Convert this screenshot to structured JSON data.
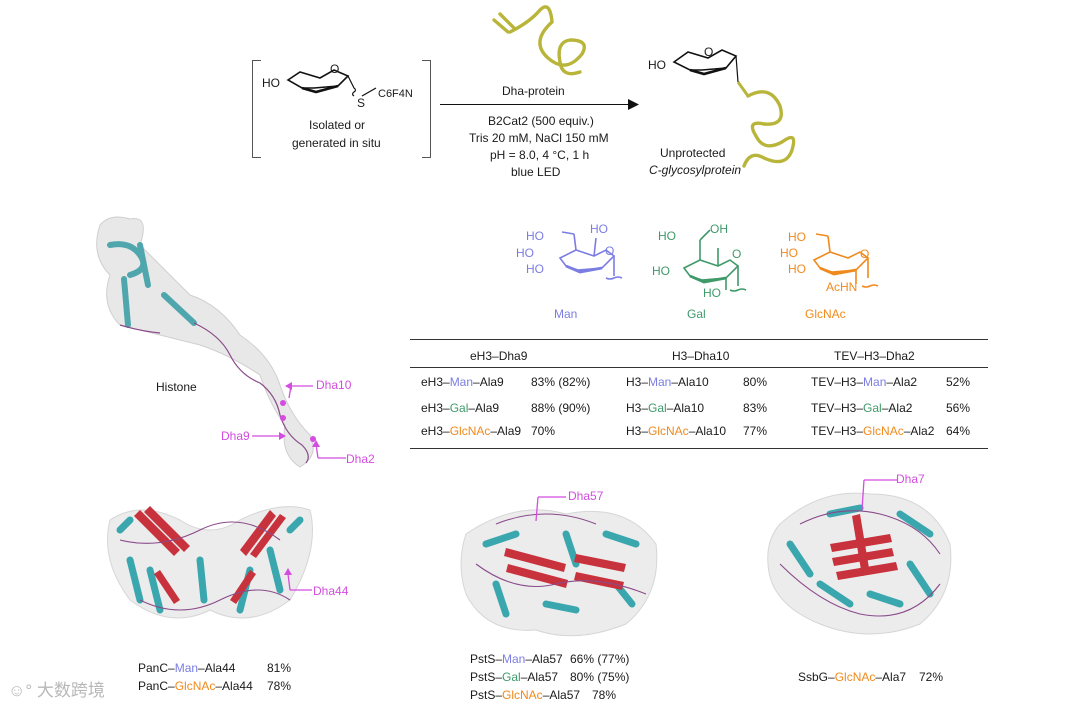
{
  "scheme": {
    "reactant_label_1": "Isolated or",
    "reactant_label_2": "generated in situ",
    "reactant_ho": "HO",
    "reactant_s": "S",
    "reactant_group": "C6F4N",
    "reagent_protein": "Dha-protein",
    "cond_1": "B2Cat2 (500 equiv.)",
    "cond_2": "Tris 20 mM, NaCl 150 mM",
    "cond_3": "pH = 8.0, 4 °C, 1 h",
    "cond_4": "blue LED",
    "product_ho": "HO",
    "product_label_1": "Unprotected",
    "product_label_2": "C-glycosylprotein"
  },
  "sugars": {
    "man": "Man",
    "gal": "Gal",
    "glcnac": "GlcNAc",
    "ho": "HO",
    "achn": "AcHN"
  },
  "histone": {
    "label": "Histone",
    "dha10": "Dha10",
    "dha9": "Dha9",
    "dha2": "Dha2"
  },
  "table": {
    "headers": [
      "eH3–Dha9",
      "H3–Dha10",
      "TEV–H3–Dha2"
    ],
    "rows": [
      [
        {
          "pre": "eH3–",
          "sugar": "Man",
          "post": "–Ala9",
          "yield": "83% (82%)"
        },
        {
          "pre": "H3–",
          "sugar": "Man",
          "post": "–Ala10",
          "yield": "80%"
        },
        {
          "pre": "TEV–H3–",
          "sugar": "Man",
          "post": "–Ala2",
          "yield": "52%"
        }
      ],
      [
        {
          "pre": "eH3–",
          "sugar": "Gal",
          "post": "–Ala9",
          "yield": "88% (90%)"
        },
        {
          "pre": "H3–",
          "sugar": "Gal",
          "post": "–Ala10",
          "yield": "83%"
        },
        {
          "pre": "TEV–H3–",
          "sugar": "Gal",
          "post": "–Ala2",
          "yield": "56%"
        }
      ],
      [
        {
          "pre": "eH3–",
          "sugar": "GlcNAc",
          "post": "–Ala9",
          "yield": "70%"
        },
        {
          "pre": "H3–",
          "sugar": "GlcNAc",
          "post": "–Ala10",
          "yield": "77%"
        },
        {
          "pre": "TEV–H3–",
          "sugar": "GlcNAc",
          "post": "–Ala2",
          "yield": "64%"
        }
      ]
    ]
  },
  "proteins": {
    "panc": {
      "dha": "Dha44",
      "lines": [
        {
          "pre": "PanC–",
          "sugar": "Man",
          "post": "–Ala44",
          "yield": "81%"
        },
        {
          "pre": "PanC–",
          "sugar": "GlcNAc",
          "post": "–Ala44",
          "yield": "78%"
        }
      ]
    },
    "psts": {
      "dha": "Dha57",
      "lines": [
        {
          "pre": "PstS–",
          "sugar": "Man",
          "post": "–Ala57",
          "yield": "66% (77%)"
        },
        {
          "pre": "PstS–",
          "sugar": "Gal",
          "post": "–Ala57",
          "yield": "80% (75%)"
        },
        {
          "pre": "PstS–",
          "sugar": "GlcNAc",
          "post": "–Ala57",
          "yield": "78%"
        }
      ]
    },
    "ssbg": {
      "dha": "Dha7",
      "lines": [
        {
          "pre": "SsbG–",
          "sugar": "GlcNAc",
          "post": "–Ala7",
          "yield": "72%"
        }
      ]
    }
  },
  "watermark": "大数跨境",
  "colors": {
    "man": "#7b7de3",
    "gal": "#3f9a6a",
    "glcnac": "#f08a1d",
    "dha": "#d44ce0",
    "protein_olive": "#b9b53a",
    "helix": "#3aa6ad",
    "sheet": "#c8323c"
  }
}
